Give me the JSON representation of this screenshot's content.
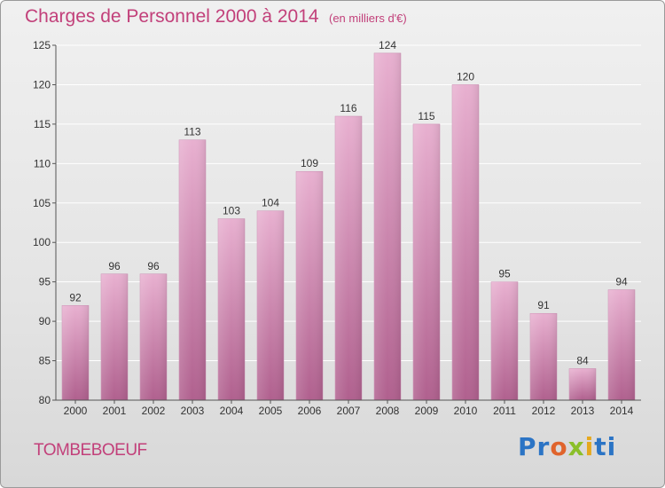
{
  "title": "Charges de Personnel 2000 à 2014",
  "subtitle": "(en milliers d'€)",
  "town": "TOMBEBOEUF",
  "logo": [
    "Pr",
    "o",
    "x",
    "i",
    "ti"
  ],
  "colors": {
    "title": "#c2407a",
    "bar_top": "#e8b0d0",
    "bar_bottom": "#b0608e"
  },
  "chart_data": {
    "type": "bar",
    "categories": [
      "2000",
      "2001",
      "2002",
      "2003",
      "2004",
      "2005",
      "2006",
      "2007",
      "2008",
      "2009",
      "2010",
      "2011",
      "2012",
      "2013",
      "2014"
    ],
    "values": [
      92,
      96,
      96,
      113,
      103,
      104,
      109,
      116,
      124,
      115,
      120,
      95,
      91,
      84,
      94
    ],
    "title": "Charges de Personnel 2000 à 2014",
    "subtitle": "(en milliers d'€)",
    "xlabel": "",
    "ylabel": "",
    "ylim": [
      80,
      125
    ],
    "yticks": [
      80,
      85,
      90,
      95,
      100,
      105,
      110,
      115,
      120,
      125
    ],
    "grid": true,
    "data_labels": true
  }
}
